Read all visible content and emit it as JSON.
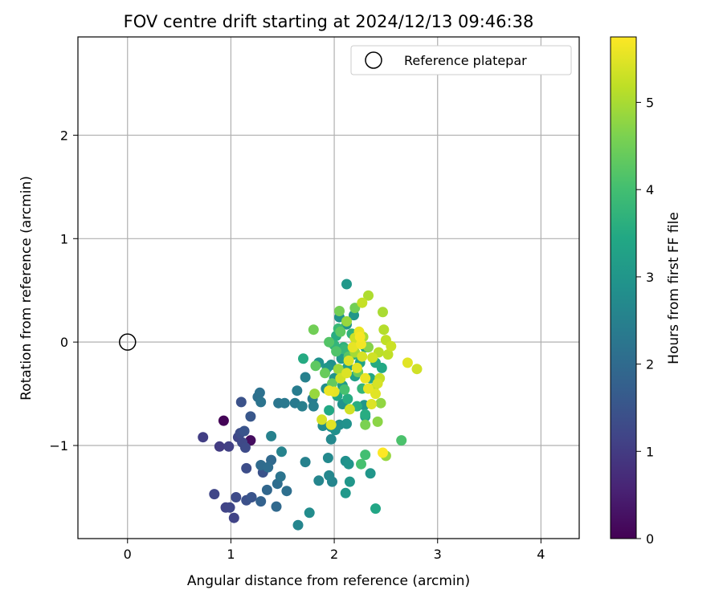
{
  "chart_data": {
    "type": "scatter",
    "title": "FOV centre drift starting at 2024/12/13 09:46:38",
    "xlabel": "Angular distance from reference (arcmin)",
    "ylabel": "Rotation from reference (arcmin)",
    "xlim": [
      -0.48,
      4.37
    ],
    "ylim": [
      -1.9,
      2.95
    ],
    "xticks": [
      0,
      1,
      2,
      3,
      4
    ],
    "yticks": [
      -1,
      0,
      1,
      2
    ],
    "grid": true,
    "legend": {
      "label": "Reference platepar",
      "placement": "top-right"
    },
    "reference_point": {
      "x": 0,
      "y": 0
    },
    "colorbar": {
      "label": "Hours from first FF file",
      "range": [
        0,
        5.75
      ],
      "ticks": [
        0,
        1,
        2,
        3,
        4,
        5
      ],
      "colormap": "viridis"
    },
    "colors": {
      "viridis": [
        "#440154",
        "#482475",
        "#414487",
        "#355f8d",
        "#2a788e",
        "#21918c",
        "#22a884",
        "#44bf70",
        "#7ad151",
        "#bddf26",
        "#fde725"
      ],
      "reference_marker": "#000000",
      "grid": "#b0b0b0"
    },
    "points": [
      [
        0.93,
        -0.76,
        0.05
      ],
      [
        1.19,
        -0.95,
        0.2
      ],
      [
        0.73,
        -0.92,
        1.05
      ],
      [
        0.89,
        -1.01,
        1.0
      ],
      [
        0.98,
        -1.01,
        1.1
      ],
      [
        1.07,
        -0.92,
        1.2
      ],
      [
        1.11,
        -0.97,
        1.25
      ],
      [
        1.14,
        -1.02,
        1.3
      ],
      [
        1.09,
        -0.88,
        1.35
      ],
      [
        1.13,
        -0.86,
        1.5
      ],
      [
        1.19,
        -0.72,
        1.55
      ],
      [
        1.1,
        -0.58,
        1.45
      ],
      [
        1.05,
        -1.5,
        1.3
      ],
      [
        0.84,
        -1.47,
        1.2
      ],
      [
        0.95,
        -1.6,
        1.15
      ],
      [
        0.99,
        -1.6,
        1.2
      ],
      [
        1.03,
        -1.7,
        1.15
      ],
      [
        1.15,
        -1.53,
        1.4
      ],
      [
        1.2,
        -1.5,
        1.5
      ],
      [
        1.15,
        -1.22,
        1.35
      ],
      [
        1.31,
        -1.26,
        1.45
      ],
      [
        1.29,
        -1.19,
        2.0
      ],
      [
        1.36,
        -1.21,
        2.05
      ],
      [
        1.39,
        -1.14,
        1.95
      ],
      [
        1.45,
        -1.37,
        2.05
      ],
      [
        1.48,
        -1.3,
        2.2
      ],
      [
        1.54,
        -1.44,
        2.1
      ],
      [
        1.35,
        -1.43,
        1.9
      ],
      [
        1.44,
        -1.59,
        1.95
      ],
      [
        1.29,
        -1.54,
        1.8
      ],
      [
        1.26,
        -0.53,
        2.1
      ],
      [
        1.28,
        -0.49,
        2.15
      ],
      [
        1.29,
        -0.58,
        2.2
      ],
      [
        1.46,
        -0.59,
        2.25
      ],
      [
        1.52,
        -0.59,
        2.3
      ],
      [
        1.62,
        -0.59,
        2.35
      ],
      [
        1.64,
        -0.47,
        2.4
      ],
      [
        1.69,
        -0.62,
        2.45
      ],
      [
        1.72,
        -0.34,
        2.5
      ],
      [
        1.8,
        -0.62,
        2.45
      ],
      [
        1.79,
        -0.55,
        2.4
      ],
      [
        1.39,
        -0.91,
        2.5
      ],
      [
        1.49,
        -1.06,
        2.55
      ],
      [
        1.65,
        -1.77,
        2.6
      ],
      [
        1.76,
        -1.65,
        2.75
      ],
      [
        1.72,
        -1.16,
        2.5
      ],
      [
        1.85,
        -1.34,
        2.6
      ],
      [
        1.94,
        -1.12,
        2.7
      ],
      [
        1.95,
        -1.29,
        2.65
      ],
      [
        1.98,
        -1.35,
        2.6
      ],
      [
        1.97,
        -0.94,
        2.7
      ],
      [
        1.89,
        -0.81,
        2.75
      ],
      [
        1.97,
        -0.82,
        2.8
      ],
      [
        2.01,
        -0.85,
        2.85
      ],
      [
        2.05,
        -0.8,
        2.8
      ],
      [
        2.12,
        -0.79,
        2.9
      ],
      [
        2.08,
        -0.6,
        2.9
      ],
      [
        2.11,
        -1.15,
        2.85
      ],
      [
        2.14,
        -1.18,
        2.95
      ],
      [
        2.15,
        -1.35,
        3.0
      ],
      [
        2.11,
        -1.46,
        3.05
      ],
      [
        2.35,
        -1.27,
        3.0
      ],
      [
        2.4,
        -1.61,
        3.4
      ],
      [
        2.29,
        -0.61,
        3.0
      ],
      [
        2.3,
        -0.72,
        3.1
      ],
      [
        2.05,
        0.24,
        2.9
      ],
      [
        2.12,
        0.17,
        2.95
      ],
      [
        2.12,
        0.56,
        3.05
      ],
      [
        2.19,
        0.26,
        3.0
      ],
      [
        1.97,
        -0.22,
        2.85
      ],
      [
        1.92,
        -0.45,
        2.8
      ],
      [
        1.85,
        -0.2,
        2.9
      ],
      [
        1.93,
        -0.25,
        3.0
      ],
      [
        2.0,
        -0.35,
        2.95
      ],
      [
        2.07,
        -0.16,
        3.1
      ],
      [
        2.08,
        -0.42,
        3.15
      ],
      [
        2.13,
        -0.24,
        3.2
      ],
      [
        2.2,
        -0.33,
        3.25
      ],
      [
        2.25,
        -0.2,
        3.3
      ],
      [
        2.3,
        -0.05,
        3.35
      ],
      [
        2.35,
        -0.35,
        3.4
      ],
      [
        2.4,
        -0.2,
        3.5
      ],
      [
        2.46,
        -0.25,
        3.45
      ],
      [
        1.7,
        -0.16,
        3.5
      ],
      [
        1.95,
        -0.66,
        3.45
      ],
      [
        2.03,
        -0.52,
        3.4
      ],
      [
        2.13,
        -0.55,
        3.55
      ],
      [
        2.22,
        -0.62,
        3.6
      ],
      [
        2.3,
        -0.7,
        3.55
      ],
      [
        2.02,
        0.06,
        3.55
      ],
      [
        2.09,
        -0.05,
        3.65
      ],
      [
        2.17,
        0.08,
        3.7
      ],
      [
        2.19,
        -0.12,
        3.6
      ],
      [
        2.0,
        -0.03,
        3.75
      ],
      [
        2.04,
        0.13,
        3.85
      ],
      [
        2.1,
        -0.07,
        3.8
      ],
      [
        2.27,
        -0.45,
        3.75
      ],
      [
        2.3,
        -1.09,
        4.0
      ],
      [
        2.26,
        -1.18,
        4.05
      ],
      [
        2.65,
        -0.95,
        4.1
      ],
      [
        2.1,
        -0.46,
        4.05
      ],
      [
        1.95,
        0.0,
        4.2
      ],
      [
        2.02,
        -0.09,
        4.15
      ],
      [
        2.06,
        0.1,
        4.3
      ],
      [
        2.14,
        -0.14,
        4.25
      ],
      [
        1.82,
        -0.23,
        4.3
      ],
      [
        1.91,
        -0.3,
        4.4
      ],
      [
        1.98,
        -0.4,
        4.35
      ],
      [
        2.23,
        -0.29,
        4.45
      ],
      [
        1.8,
        0.12,
        4.5
      ],
      [
        2.05,
        0.3,
        4.55
      ],
      [
        2.2,
        0.33,
        4.5
      ],
      [
        2.3,
        -0.8,
        4.6
      ],
      [
        2.33,
        -0.05,
        4.7
      ],
      [
        2.42,
        -0.77,
        4.75
      ],
      [
        2.45,
        -0.59,
        4.8
      ],
      [
        1.81,
        -0.5,
        4.85
      ],
      [
        2.04,
        -0.26,
        4.9
      ],
      [
        2.12,
        0.2,
        4.85
      ],
      [
        2.2,
        -0.1,
        4.95
      ],
      [
        2.28,
        0.05,
        5.0
      ],
      [
        2.33,
        0.45,
        5.05
      ],
      [
        2.38,
        -0.45,
        5.1
      ],
      [
        2.43,
        -0.1,
        5.15
      ],
      [
        2.48,
        0.12,
        5.1
      ],
      [
        2.5,
        0.02,
        5.2
      ],
      [
        2.27,
        0.38,
        5.25
      ],
      [
        2.47,
        0.29,
        5.0
      ],
      [
        2.52,
        -0.12,
        5.2
      ],
      [
        2.55,
        -0.04,
        5.3
      ],
      [
        2.5,
        -1.1,
        4.85
      ],
      [
        2.44,
        -0.35,
        5.25
      ],
      [
        2.37,
        -0.15,
        5.35
      ],
      [
        1.88,
        -0.75,
        5.4
      ],
      [
        1.97,
        -0.8,
        5.5
      ],
      [
        2.0,
        -0.48,
        5.55
      ],
      [
        1.95,
        -0.47,
        5.6
      ],
      [
        2.12,
        -0.3,
        5.45
      ],
      [
        2.18,
        -0.05,
        5.55
      ],
      [
        2.24,
        0.1,
        5.6
      ],
      [
        2.26,
        -0.02,
        5.65
      ],
      [
        2.3,
        -0.35,
        5.6
      ],
      [
        2.33,
        -0.45,
        5.55
      ],
      [
        2.36,
        -0.6,
        5.45
      ],
      [
        2.4,
        -0.5,
        5.5
      ],
      [
        2.42,
        -0.4,
        5.4
      ],
      [
        2.15,
        -0.65,
        5.35
      ],
      [
        2.71,
        -0.2,
        5.5
      ],
      [
        2.8,
        -0.26,
        5.35
      ],
      [
        2.47,
        -1.07,
        5.75
      ],
      [
        2.25,
        0.05,
        5.7
      ],
      [
        2.22,
        -0.25,
        5.5
      ],
      [
        2.14,
        -0.18,
        5.45
      ],
      [
        2.27,
        -0.14,
        5.4
      ],
      [
        2.2,
        0.04,
        5.3
      ],
      [
        2.06,
        -0.35,
        5.35
      ]
    ]
  }
}
